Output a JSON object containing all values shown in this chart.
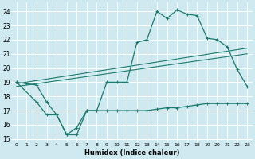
{
  "xlabel": "Humidex (Indice chaleur)",
  "bg_color": "#cfe9f0",
  "grid_color": "#ffffff",
  "line_color": "#1a7a6e",
  "xlim": [
    -0.5,
    23.5
  ],
  "ylim": [
    14.8,
    24.6
  ],
  "yticks": [
    15,
    16,
    17,
    18,
    19,
    20,
    21,
    22,
    23,
    24
  ],
  "xticks": [
    0,
    1,
    2,
    3,
    4,
    5,
    6,
    7,
    8,
    9,
    10,
    11,
    12,
    13,
    14,
    15,
    16,
    17,
    18,
    19,
    20,
    21,
    22,
    23
  ],
  "series": [
    {
      "x": [
        0,
        1,
        2,
        3,
        4,
        5,
        6,
        7,
        8,
        9,
        10,
        11,
        12,
        13,
        14,
        15,
        16,
        17,
        18,
        19,
        20,
        21,
        22,
        23
      ],
      "y": [
        19.0,
        18.9,
        18.8,
        17.6,
        16.7,
        15.3,
        15.3,
        17.0,
        17.0,
        19.0,
        19.0,
        19.0,
        21.8,
        22.0,
        24.0,
        23.5,
        24.1,
        23.8,
        23.7,
        22.1,
        22.0,
        21.5,
        19.9,
        18.7
      ],
      "marker": true
    },
    {
      "x": [
        0,
        23
      ],
      "y": [
        18.9,
        21.4
      ],
      "marker": false
    },
    {
      "x": [
        0,
        23
      ],
      "y": [
        18.7,
        21.0
      ],
      "marker": false
    },
    {
      "x": [
        0,
        2,
        3,
        4,
        5,
        6,
        7,
        8,
        9,
        10,
        11,
        12,
        13,
        14,
        15,
        16,
        17,
        18,
        19,
        20,
        21,
        22,
        23
      ],
      "y": [
        19.0,
        17.6,
        16.7,
        16.7,
        15.3,
        15.8,
        17.0,
        17.0,
        17.0,
        17.0,
        17.0,
        17.0,
        17.0,
        17.1,
        17.2,
        17.2,
        17.3,
        17.4,
        17.5,
        17.5,
        17.5,
        17.5,
        17.5
      ],
      "marker": true
    }
  ]
}
